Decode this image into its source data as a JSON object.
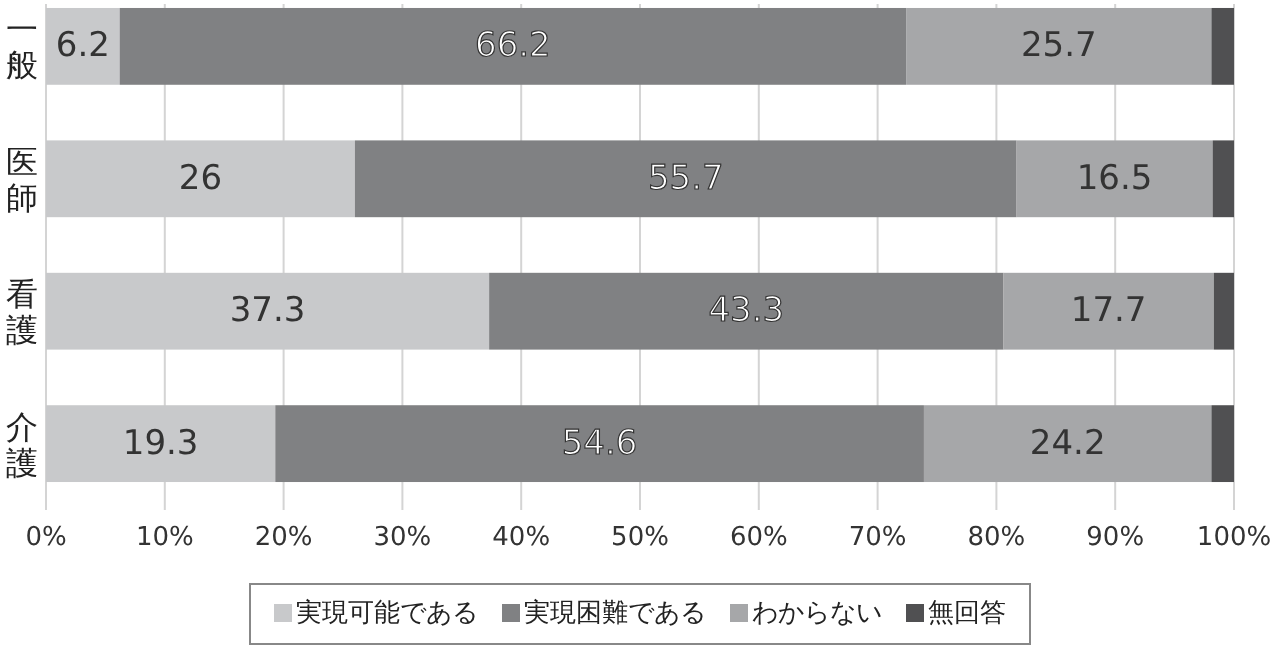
{
  "chart_data": {
    "type": "bar",
    "orientation": "horizontal",
    "stacked": true,
    "categories": [
      "一般",
      "医師",
      "看護",
      "介護"
    ],
    "series": [
      {
        "name": "実現可能である",
        "color": "#c8c9cb",
        "values": [
          6.2,
          26,
          37.3,
          19.3
        ],
        "value_labels": [
          "6.2",
          "26",
          "37.3",
          "19.3"
        ]
      },
      {
        "name": "実現困難である",
        "color": "#808183",
        "values": [
          66.2,
          55.7,
          43.3,
          54.6
        ],
        "value_labels": [
          "66.2",
          "55.7",
          "43.3",
          "54.6"
        ]
      },
      {
        "name": "わからない",
        "color": "#a6a7a9",
        "values": [
          25.7,
          16.5,
          17.7,
          24.2
        ],
        "value_labels": [
          "25.7",
          "16.5",
          "17.7",
          "24.2"
        ]
      },
      {
        "name": "無回答",
        "color": "#505052",
        "values": [
          1.9,
          1.8,
          1.7,
          1.9
        ],
        "value_labels": [
          null,
          null,
          null,
          null
        ]
      }
    ],
    "xlim": [
      0,
      100
    ],
    "xticks": [
      {
        "value": 0,
        "label": "0%"
      },
      {
        "value": 10,
        "label": "10%"
      },
      {
        "value": 20,
        "label": "20%"
      },
      {
        "value": 30,
        "label": "30%"
      },
      {
        "value": 40,
        "label": "40%"
      },
      {
        "value": 50,
        "label": "50%"
      },
      {
        "value": 60,
        "label": "60%"
      },
      {
        "value": 70,
        "label": "70%"
      },
      {
        "value": 80,
        "label": "80%"
      },
      {
        "value": 90,
        "label": "90%"
      },
      {
        "value": 100,
        "label": "100%"
      }
    ],
    "grid": "x",
    "legend": "bottom"
  }
}
